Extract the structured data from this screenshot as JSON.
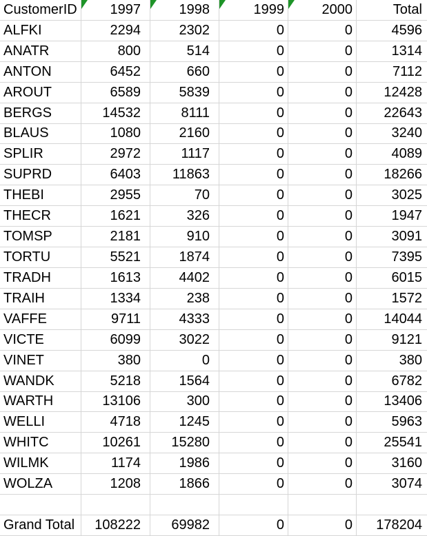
{
  "colors": {
    "background": "#ffffff",
    "gridline": "#d6d6d6",
    "text": "#000000",
    "error_indicator_green": "#1e9428"
  },
  "table": {
    "columns": [
      {
        "label": "CustomerID",
        "align": "left",
        "error_indicator": false
      },
      {
        "label": "1997",
        "align": "right",
        "error_indicator": true
      },
      {
        "label": "1998",
        "align": "right",
        "error_indicator": true
      },
      {
        "label": "1999",
        "align": "right",
        "error_indicator": true
      },
      {
        "label": "2000",
        "align": "right",
        "error_indicator": true
      },
      {
        "label": "Total",
        "align": "right",
        "error_indicator": false
      }
    ],
    "rows": [
      [
        "ALFKI",
        "2294",
        "2302",
        "0",
        "0",
        "4596"
      ],
      [
        "ANATR",
        "800",
        "514",
        "0",
        "0",
        "1314"
      ],
      [
        "ANTON",
        "6452",
        "660",
        "0",
        "0",
        "7112"
      ],
      [
        "AROUT",
        "6589",
        "5839",
        "0",
        "0",
        "12428"
      ],
      [
        "BERGS",
        "14532",
        "8111",
        "0",
        "0",
        "22643"
      ],
      [
        "BLAUS",
        "1080",
        "2160",
        "0",
        "0",
        "3240"
      ],
      [
        "SPLIR",
        "2972",
        "1117",
        "0",
        "0",
        "4089"
      ],
      [
        "SUPRD",
        "6403",
        "11863",
        "0",
        "0",
        "18266"
      ],
      [
        "THEBI",
        "2955",
        "70",
        "0",
        "0",
        "3025"
      ],
      [
        "THECR",
        "1621",
        "326",
        "0",
        "0",
        "1947"
      ],
      [
        "TOMSP",
        "2181",
        "910",
        "0",
        "0",
        "3091"
      ],
      [
        "TORTU",
        "5521",
        "1874",
        "0",
        "0",
        "7395"
      ],
      [
        "TRADH",
        "1613",
        "4402",
        "0",
        "0",
        "6015"
      ],
      [
        "TRAIH",
        "1334",
        "238",
        "0",
        "0",
        "1572"
      ],
      [
        "VAFFE",
        "9711",
        "4333",
        "0",
        "0",
        "14044"
      ],
      [
        "VICTE",
        "6099",
        "3022",
        "0",
        "0",
        "9121"
      ],
      [
        "VINET",
        "380",
        "0",
        "0",
        "0",
        "380"
      ],
      [
        "WANDK",
        "5218",
        "1564",
        "0",
        "0",
        "6782"
      ],
      [
        "WARTH",
        "13106",
        "300",
        "0",
        "0",
        "13406"
      ],
      [
        "WELLI",
        "4718",
        "1245",
        "0",
        "0",
        "5963"
      ],
      [
        "WHITC",
        "10261",
        "15280",
        "0",
        "0",
        "25541"
      ],
      [
        "WILMK",
        "1174",
        "1986",
        "0",
        "0",
        "3160"
      ],
      [
        "WOLZA",
        "1208",
        "1866",
        "0",
        "0",
        "3074"
      ]
    ],
    "empty_row": [
      "",
      "",
      "",
      "",
      "",
      ""
    ],
    "grand_total": [
      "Grand Total",
      "108222",
      "69982",
      "0",
      "0",
      "178204"
    ]
  }
}
